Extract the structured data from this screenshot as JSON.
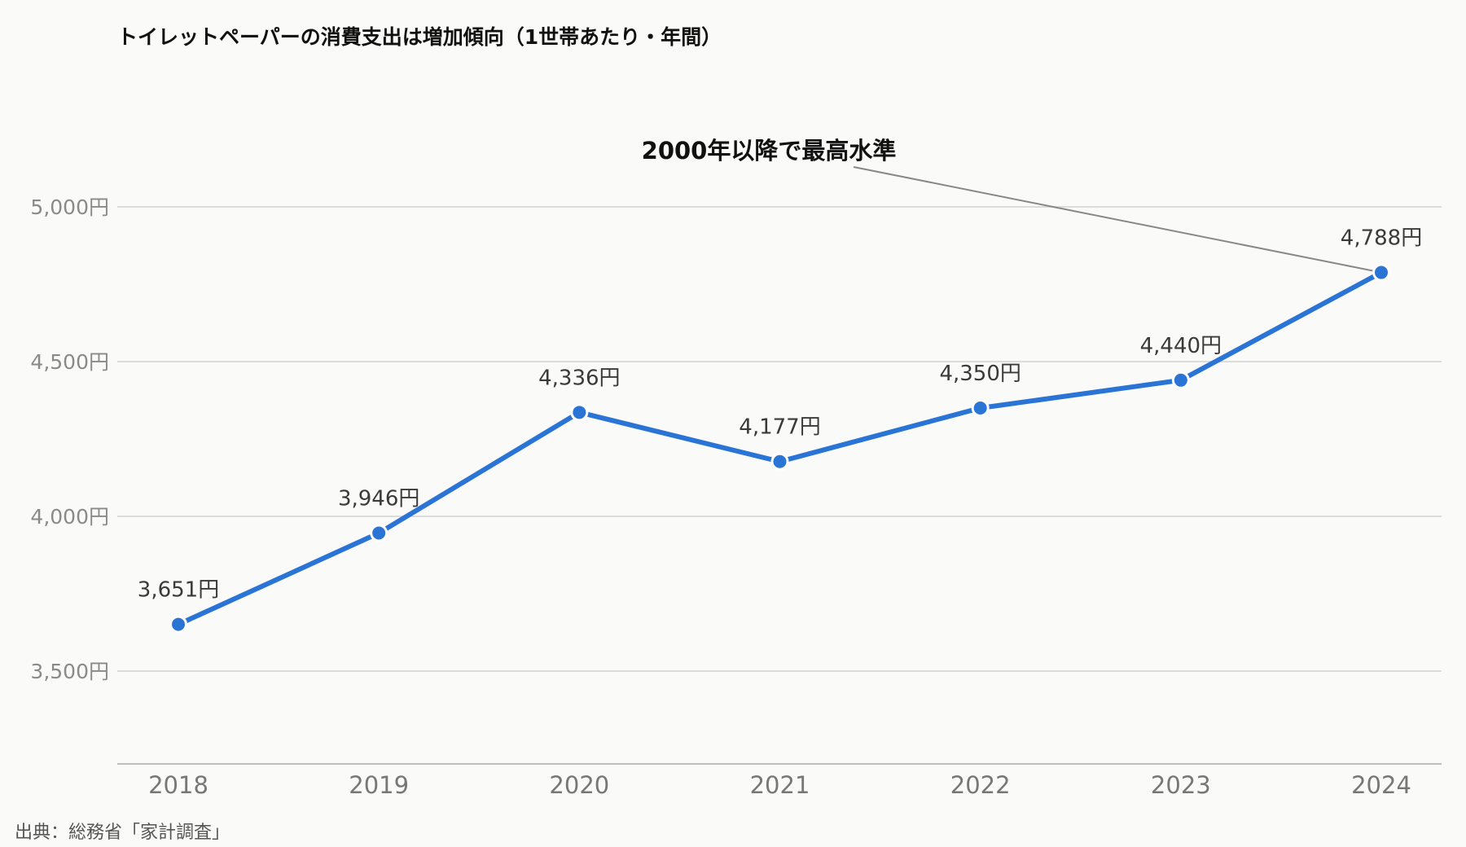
{
  "source": "出典：総務省「家計調査」",
  "chart_data": {
    "type": "line",
    "title": "トイレットペーパーの消費支出は増加傾向（1世帯あたり・年間）",
    "categories": [
      "2018",
      "2019",
      "2020",
      "2021",
      "2022",
      "2023",
      "2024"
    ],
    "series": [
      {
        "values": [
          3651,
          3946,
          4336,
          4177,
          4350,
          4440,
          4788
        ],
        "color": "#2a74d6"
      }
    ],
    "data_labels": [
      "3,651円",
      "3,946円",
      "4,336円",
      "4,177円",
      "4,350円",
      "4,440円",
      "4,788円"
    ],
    "yticks": [
      3500,
      4000,
      4500,
      5000
    ],
    "ytick_labels": [
      "3,500円",
      "4,000円",
      "4,500円",
      "5,000円"
    ],
    "ylim": [
      3200,
      5300
    ],
    "grid": true,
    "annotation": {
      "text": "2000年以降で最高水準",
      "target_index": 6
    },
    "xlabel": "",
    "ylabel": ""
  }
}
